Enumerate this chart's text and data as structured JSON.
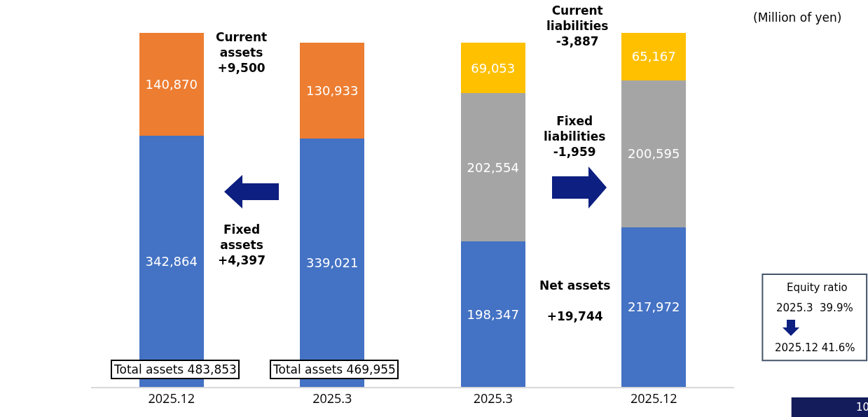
{
  "chart_data": {
    "type": "bar",
    "stacked": true,
    "tick_labels": "x",
    "grid": false,
    "categories": [
      "2025.12",
      "2025.3",
      "2025.3",
      "2025.12"
    ],
    "series": [
      {
        "color": "#4472c4",
        "values": [
          342864,
          339021,
          198347,
          217972
        ],
        "value_labels": [
          "342,864",
          "339,021",
          "198,347",
          "217,972"
        ]
      },
      {
        "color": "#ed7d31",
        "values": [
          140870,
          130933,
          null,
          null
        ],
        "value_labels": [
          "140,870",
          "130,933",
          null,
          null
        ]
      },
      {
        "color": "#a5a5a5",
        "values": [
          null,
          null,
          202554,
          200595
        ],
        "value_labels": [
          null,
          null,
          "202,554",
          "200,595"
        ]
      },
      {
        "color": "#ffc000",
        "values": [
          null,
          null,
          69053,
          65167
        ],
        "value_labels": [
          null,
          null,
          "69,053",
          "65,167"
        ]
      }
    ],
    "annotations": [
      "Current\nassets\n+9,500",
      "Fixed\nassets\n+4,397",
      "Current\nliabilities\n-3,887",
      "Fixed\nliabilities\n-1,959",
      "Net assets\n\n+19,744",
      "Total assets 483,853",
      "Total assets 469,955",
      "(Million of yen)",
      "Equity ratio",
      "2025.3  39.9%",
      "2025.12 41.6%",
      "10"
    ]
  }
}
